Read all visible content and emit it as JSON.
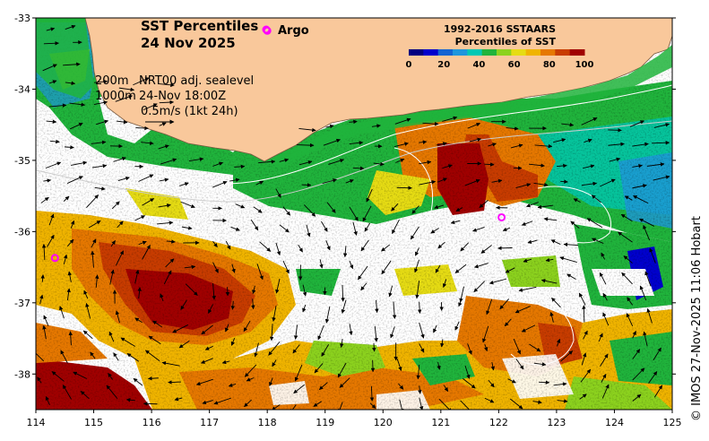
{
  "title": {
    "line1": "SST Percentiles",
    "line2": "24 Nov 2025"
  },
  "argo": {
    "label": "Argo",
    "marker_color": "#ff00ff",
    "floats": [
      {
        "lon": 118.0,
        "lat": -33.18
      },
      {
        "lon": 114.33,
        "lat": -36.37
      },
      {
        "lon": 122.05,
        "lat": -35.8
      }
    ]
  },
  "current_info": {
    "contour_depth_1": "200m",
    "contour_depth_2": "1000m",
    "product": "NRT00 adj. sealevel",
    "timestamp": "24-Nov 18:00Z",
    "scale": "0.5m/s (1kt 24h)"
  },
  "colorbar": {
    "title1": "1992-2016 SSTAARS",
    "title2": "Percentiles of SST",
    "ticks": [
      "0",
      "20",
      "40",
      "60",
      "80",
      "100"
    ],
    "colors": [
      "#000080",
      "#0000cd",
      "#1464d2",
      "#1e96dc",
      "#00c8b4",
      "#20b43c",
      "#8cd21e",
      "#e6dc14",
      "#f0b400",
      "#e67800",
      "#c83c00",
      "#a00000"
    ]
  },
  "axes": {
    "x_ticks": [
      "114",
      "115",
      "116",
      "117",
      "118",
      "119",
      "120",
      "121",
      "122",
      "123",
      "124",
      "125"
    ],
    "y_ticks": [
      "-33",
      "-34",
      "-35",
      "-36",
      "-37",
      "-38"
    ],
    "lon_range": [
      114,
      125
    ],
    "lat_range": [
      -33,
      -38.5
    ]
  },
  "credit": "© IMOS 27-Nov-2025 11:06 Hobart",
  "colors": {
    "land": "#f9c89b",
    "cloud": "#ffffff",
    "arrow": "#000000",
    "contour": "#ffffff"
  }
}
